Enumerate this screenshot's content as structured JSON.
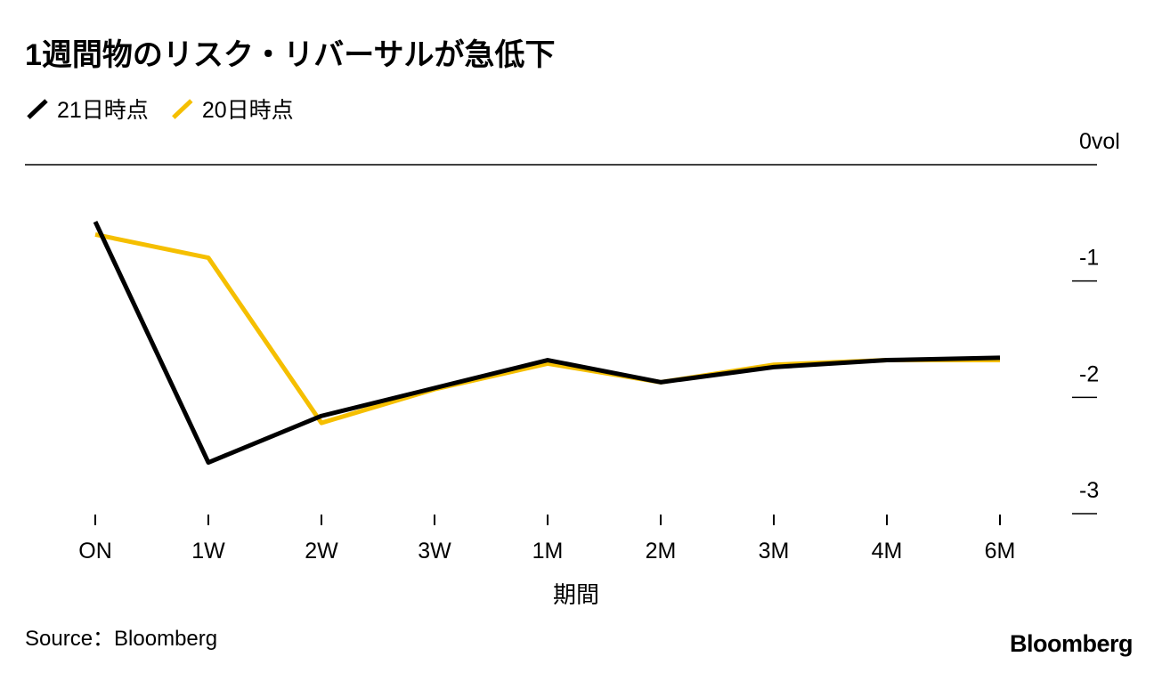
{
  "chart_data": {
    "type": "line",
    "title": "1週間物のリスク・リバーサルが急低下",
    "x_label": "期間",
    "source": "Source：Bloomberg",
    "brand": "Bloomberg",
    "categories": [
      "ON",
      "1W",
      "2W",
      "3W",
      "1M",
      "2M",
      "3M",
      "4M",
      "6M"
    ],
    "series": [
      {
        "name": "20日時点",
        "color": "#f5bf00",
        "values": [
          -0.6,
          -0.8,
          -2.22,
          -1.93,
          -1.71,
          -1.87,
          -1.72,
          -1.68,
          -1.68
        ]
      },
      {
        "name": "21日時点",
        "color": "#000000",
        "values": [
          -0.49,
          -2.56,
          -2.16,
          -1.92,
          -1.68,
          -1.87,
          -1.74,
          -1.68,
          -1.66
        ]
      }
    ],
    "legend_order": [
      1,
      0
    ],
    "ylim": [
      -3,
      0
    ],
    "yticks": [
      {
        "value": 0,
        "label": "0vol"
      },
      -1,
      -2,
      -3
    ]
  }
}
